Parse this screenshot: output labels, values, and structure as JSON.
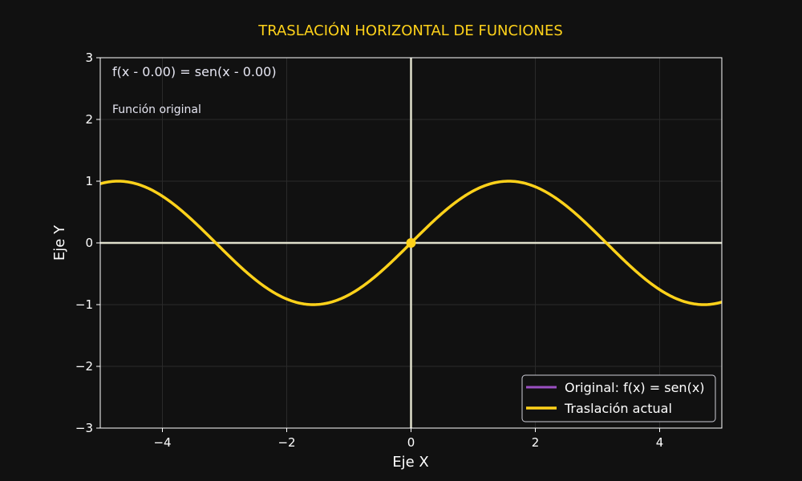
{
  "chart_data": {
    "type": "line",
    "title": "TRASLACIÓN HORIZONTAL DE FUNCIONES",
    "xlabel": "Eje X",
    "ylabel": "Eje Y",
    "xlim": [
      -5,
      5
    ],
    "ylim": [
      -3,
      3
    ],
    "x_ticks": [
      -4,
      -2,
      0,
      2,
      4
    ],
    "x_tick_labels": [
      "−4",
      "−2",
      "0",
      "2",
      "4"
    ],
    "y_ticks": [
      -3,
      -2,
      -1,
      0,
      1,
      2,
      3
    ],
    "y_tick_labels": [
      "−3",
      "−2",
      "−1",
      "0",
      "1",
      "2",
      "3"
    ],
    "grid": true,
    "legend_position": "bottom-right",
    "annotations": {
      "equation": "f(x - 0.00) = sen(x - 0.00)",
      "status": "Función original"
    },
    "series": [
      {
        "name": "Original: f(x) = sen(x)",
        "color": "#9b4fc2",
        "function": "sin(x)",
        "shift": 0.0
      },
      {
        "name": "Traslación actual",
        "color": "#ffd21a",
        "function": "sin(x - 0.00)",
        "shift": 0.0
      }
    ],
    "marker": {
      "x": 0,
      "y": 0,
      "color": "#ffd21a"
    },
    "colors": {
      "background": "#111111",
      "title": "#ffd21a",
      "axes_lines": "#e0e0cc",
      "frame": "#ffffff",
      "grid": "#2a2a2a"
    }
  }
}
